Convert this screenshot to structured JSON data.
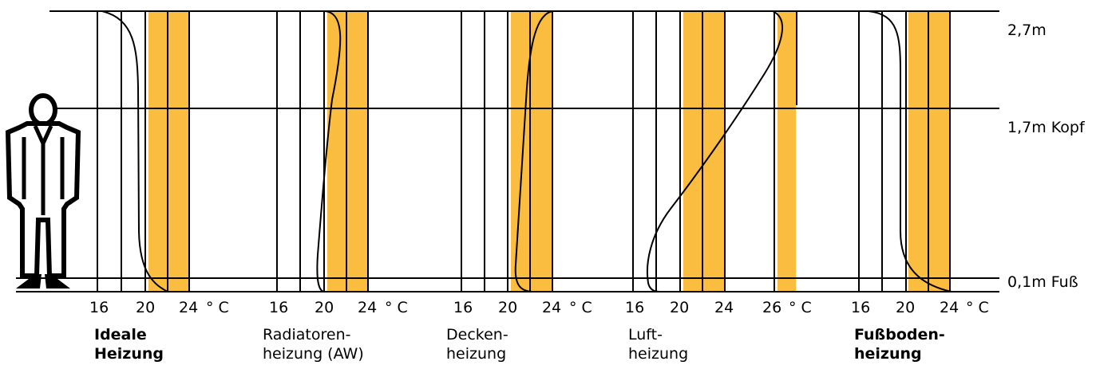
{
  "height_labels": {
    "top": "2,7m",
    "head": "1,7m Kopf",
    "foot": "0,1m Fuß"
  },
  "unit": "° C",
  "panels": [
    {
      "caption": [
        "Ideale",
        "Heizung"
      ],
      "caption_bold": true,
      "ticks": [
        "16",
        "20",
        "24"
      ],
      "comfort_band_celsius": [
        20.5,
        24
      ]
    },
    {
      "caption": [
        "Radiatoren-",
        "heizung (AW)"
      ],
      "caption_bold": false,
      "ticks": [
        "16",
        "20",
        "24"
      ],
      "comfort_band_celsius": [
        20.5,
        24
      ]
    },
    {
      "caption": [
        "Decken-",
        "heizung"
      ],
      "caption_bold": false,
      "ticks": [
        "16",
        "20",
        "24"
      ],
      "comfort_band_celsius": [
        20.5,
        24
      ]
    },
    {
      "caption": [
        "Luft-",
        "heizung"
      ],
      "caption_bold": false,
      "ticks": [
        "16",
        "20",
        "24",
        "26"
      ],
      "comfort_band_celsius": [
        20.5,
        24
      ]
    },
    {
      "caption": [
        "Fußboden-",
        "heizung"
      ],
      "caption_bold": true,
      "ticks": [
        "16",
        "20",
        "24"
      ],
      "comfort_band_celsius": [
        20.5,
        24
      ]
    }
  ],
  "colors": {
    "comfort_band": "#fbbd40",
    "line": "#000000",
    "background": "#ffffff"
  },
  "icons": [
    "standing-person-icon"
  ]
}
